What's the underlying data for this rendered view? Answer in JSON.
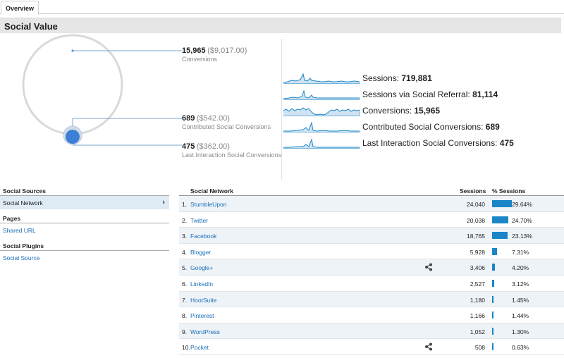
{
  "tabs": {
    "overview_label": "Overview"
  },
  "section": {
    "title": "Social Value"
  },
  "overview": {
    "total": {
      "value": "15,965",
      "money": "($9,017.00)",
      "label": "Conversions"
    },
    "contributed": {
      "value": "689",
      "money": "($542.00)",
      "label": "Contributed Social Conversions"
    },
    "last_interaction": {
      "value": "475",
      "money": "($362.00)",
      "label": "Last Interaction Social Conversions"
    }
  },
  "metrics": [
    {
      "label": "Sessions:",
      "value": "719,881"
    },
    {
      "label": "Sessions via Social Referral:",
      "value": "81,114"
    },
    {
      "label": "Conversions:",
      "value": "15,965"
    },
    {
      "label": "Contributed Social Conversions:",
      "value": "689"
    },
    {
      "label": "Last Interaction Social Conversions:",
      "value": "475"
    }
  ],
  "sources": {
    "social_sources_heading": "Social Sources",
    "social_network_item": "Social Network",
    "pages_heading": "Pages",
    "shared_url_item": "Shared URL",
    "social_plugins_heading": "Social Plugins",
    "social_source_item": "Social Source"
  },
  "table": {
    "headers": {
      "network": "Social Network",
      "sessions": "Sessions",
      "pct": "% Sessions"
    },
    "rows": [
      {
        "idx": "1.",
        "name": "StumbleUpon",
        "sessions": "24,040",
        "pct": "29.64%",
        "pct_value": 29.64,
        "share_icon": false
      },
      {
        "idx": "2.",
        "name": "Twitter",
        "sessions": "20,038",
        "pct": "24.70%",
        "pct_value": 24.7,
        "share_icon": false
      },
      {
        "idx": "3.",
        "name": "Facebook",
        "sessions": "18,765",
        "pct": "23.13%",
        "pct_value": 23.13,
        "share_icon": false
      },
      {
        "idx": "4.",
        "name": "Blogger",
        "sessions": "5,928",
        "pct": "7.31%",
        "pct_value": 7.31,
        "share_icon": false
      },
      {
        "idx": "5.",
        "name": "Google+",
        "sessions": "3,406",
        "pct": "4.20%",
        "pct_value": 4.2,
        "share_icon": true
      },
      {
        "idx": "6.",
        "name": "LinkedIn",
        "sessions": "2,527",
        "pct": "3.12%",
        "pct_value": 3.12,
        "share_icon": false
      },
      {
        "idx": "7.",
        "name": "HootSuite",
        "sessions": "1,180",
        "pct": "1.45%",
        "pct_value": 1.45,
        "share_icon": false
      },
      {
        "idx": "8.",
        "name": "Pinterest",
        "sessions": "1,166",
        "pct": "1.44%",
        "pct_value": 1.44,
        "share_icon": false
      },
      {
        "idx": "9.",
        "name": "WordPress",
        "sessions": "1,052",
        "pct": "1.30%",
        "pct_value": 1.3,
        "share_icon": false
      },
      {
        "idx": "10.",
        "name": "Pocket",
        "sessions": "508",
        "pct": "0.63%",
        "pct_value": 0.63,
        "share_icon": true
      }
    ]
  },
  "colors": {
    "accent": "#1a86c8",
    "link": "#1a6eb6",
    "dot": "#3d7ed6"
  }
}
